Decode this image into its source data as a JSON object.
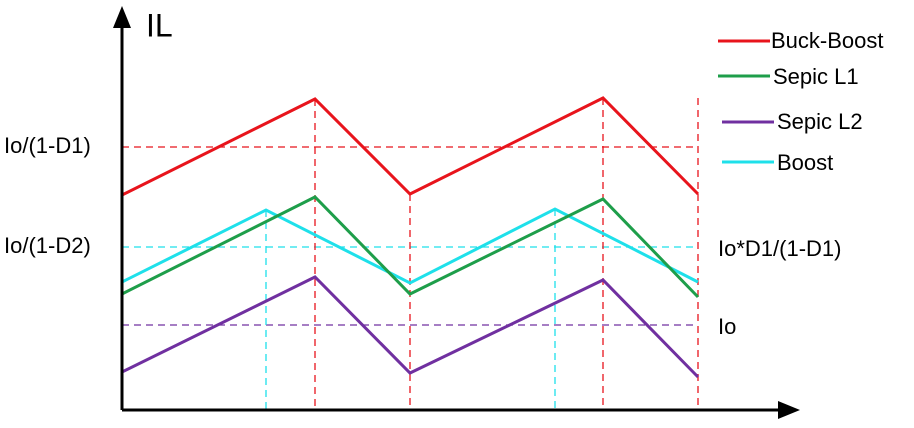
{
  "axis_label": "IL",
  "left_labels": [
    "Io/(1-D1)",
    "Io/(1-D2)"
  ],
  "right_labels": [
    "Io*D1/(1-D1)",
    "Io"
  ],
  "legend": [
    "Buck-Boost",
    "Sepic L1",
    "Sepic L2",
    "Boost"
  ]
}
